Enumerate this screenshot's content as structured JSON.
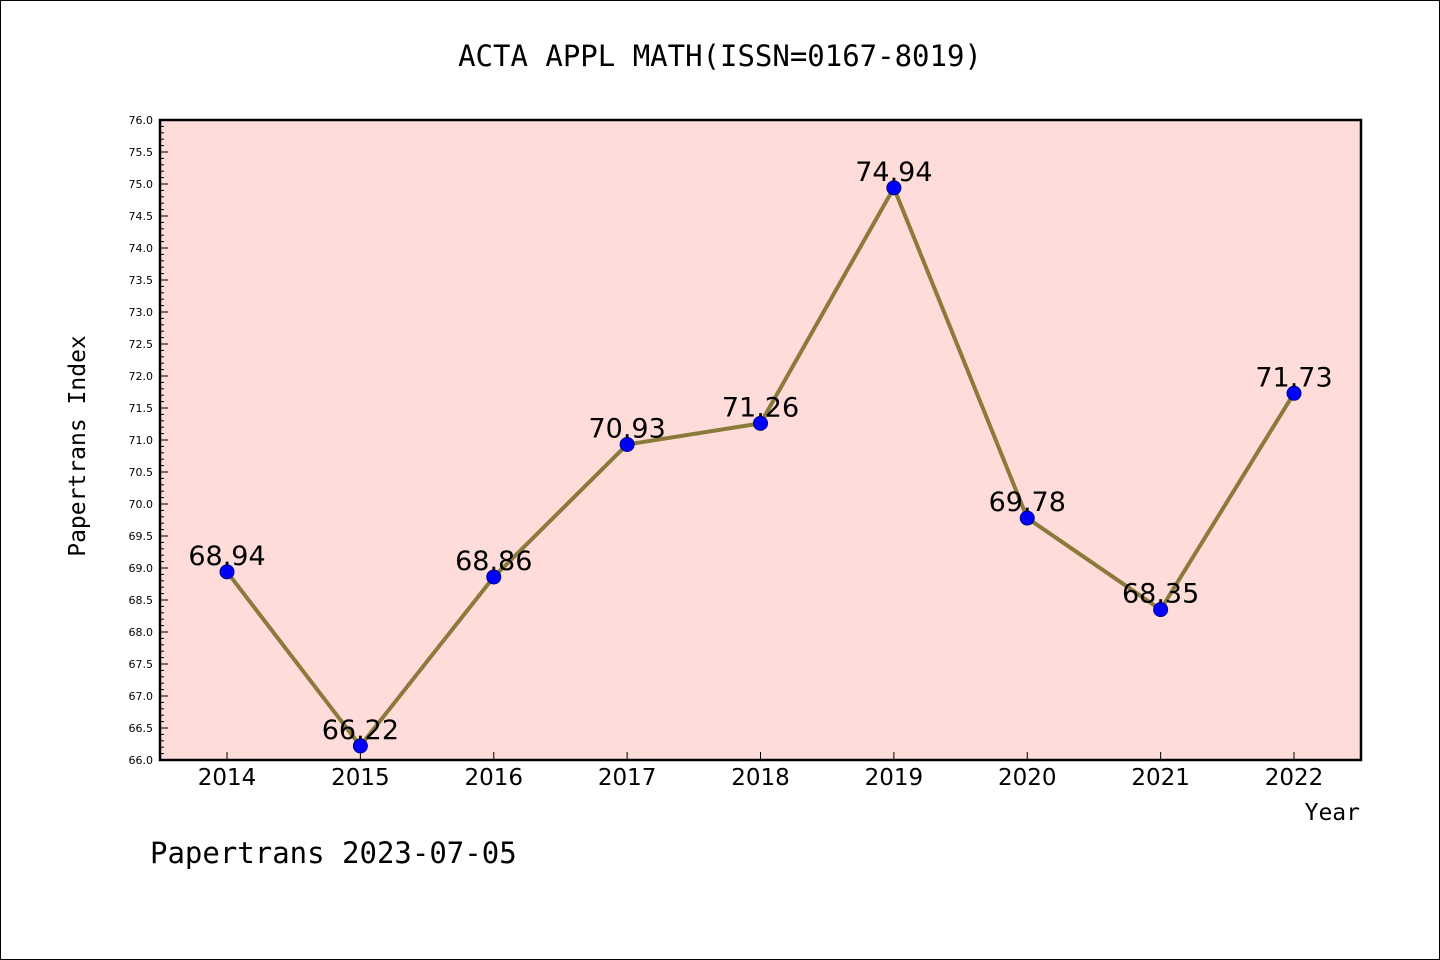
{
  "chart_data": {
    "type": "line",
    "title": "ACTA APPL MATH(ISSN=0167-8019)",
    "xlabel": "Year",
    "ylabel": "Papertrans Index",
    "footer": "Papertrans 2023-07-05",
    "categories": [
      "2014",
      "2015",
      "2016",
      "2017",
      "2018",
      "2019",
      "2020",
      "2021",
      "2022"
    ],
    "series": [
      {
        "values": [
          68.94,
          66.22,
          68.86,
          70.93,
          71.26,
          74.94,
          69.78,
          68.35,
          71.73
        ],
        "labels": [
          "68.94",
          "66.22",
          "68.86",
          "70.93",
          "71.26",
          "74.94",
          "69.78",
          "68.35",
          "71.73"
        ]
      }
    ],
    "ylim": [
      66.0,
      76.0
    ],
    "yticks": [
      "66.0",
      "66.5",
      "67.0",
      "67.5",
      "68.0",
      "68.5",
      "69.0",
      "69.5",
      "70.0",
      "70.5",
      "71.0",
      "71.5",
      "72.0",
      "72.5",
      "73.0",
      "73.5",
      "74.0",
      "74.5",
      "75.0",
      "75.5",
      "76.0"
    ],
    "grid": false,
    "colors": {
      "plot_background": "#fddcda",
      "line": "#8b7a3a",
      "marker": "#0000ff"
    }
  }
}
